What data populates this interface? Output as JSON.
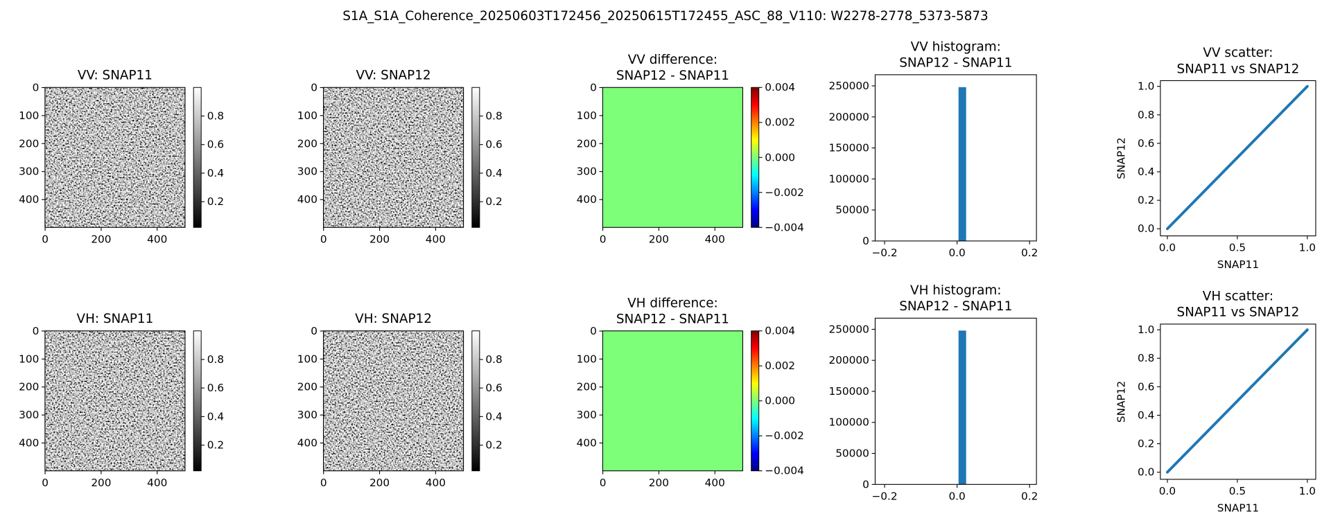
{
  "title": "S1A_S1A_Coherence_20250603T172456_20250615T172455_ASC_88_V110: W2278-2778_5373-5873",
  "chart_data": [
    {
      "type": "image",
      "title": "VV: SNAP11",
      "colormap": "gray",
      "xlim": [
        -0.5,
        499.5
      ],
      "ylim": [
        499.5,
        -0.5
      ],
      "xticks": [
        0,
        200,
        400
      ],
      "yticks": [
        0,
        100,
        200,
        300,
        400
      ],
      "clim": [
        0.02,
        1.0
      ],
      "cticks": [
        0.2,
        0.4,
        0.6,
        0.8
      ]
    },
    {
      "type": "image",
      "title": "VV: SNAP12",
      "colormap": "gray",
      "xlim": [
        -0.5,
        499.5
      ],
      "ylim": [
        499.5,
        -0.5
      ],
      "xticks": [
        0,
        200,
        400
      ],
      "yticks": [
        0,
        100,
        200,
        300,
        400
      ],
      "clim": [
        0.02,
        1.0
      ],
      "cticks": [
        0.2,
        0.4,
        0.6,
        0.8
      ]
    },
    {
      "type": "image",
      "title": "VV difference:\nSNAP12 - SNAP11",
      "colormap": "jet",
      "xlim": [
        -0.5,
        499.5
      ],
      "ylim": [
        499.5,
        -0.5
      ],
      "xticks": [
        0,
        200,
        400
      ],
      "yticks": [
        0,
        100,
        200,
        300,
        400
      ],
      "clim": [
        -0.004,
        0.004
      ],
      "cticks": [
        {
          "value": -0.004,
          "label": "−0.004"
        },
        {
          "value": -0.002,
          "label": "−0.002"
        },
        {
          "value": 0,
          "label": "0.000"
        },
        0.002,
        0.004
      ]
    },
    {
      "type": "histogram",
      "title": "VV histogram:\nSNAP12 - SNAP11",
      "bins": [
        0.004,
        0.025
      ],
      "counts": [
        248000
      ],
      "color": "#1f77b4",
      "xlim": [
        -0.226,
        0.219
      ],
      "ylim": [
        0,
        268000
      ],
      "xticks": [
        {
          "value": -0.2,
          "label": "−0.2"
        },
        {
          "value": 0,
          "label": "0.0"
        },
        0.2
      ],
      "yticks": [
        0,
        50000,
        100000,
        150000,
        200000,
        250000
      ]
    },
    {
      "type": "scatter",
      "title": "VV scatter:\nSNAP11 vs SNAP12",
      "x": [
        0,
        0.5,
        1
      ],
      "y": [
        0,
        0.5,
        1
      ],
      "color": "#1f77b4",
      "xlabel": "SNAP11",
      "ylabel": "SNAP12",
      "xlim": [
        -0.05,
        1.06
      ],
      "ylim": [
        -0.05,
        1.04
      ],
      "xticks": [
        {
          "value": 0,
          "label": "0.0"
        },
        0.5,
        {
          "value": 1,
          "label": "1.0"
        }
      ],
      "yticks": [
        {
          "value": 0,
          "label": "0.0"
        },
        0.2,
        0.4,
        0.6,
        0.8,
        {
          "value": 1,
          "label": "1.0"
        }
      ]
    },
    {
      "type": "image",
      "title": "VH: SNAP11",
      "colormap": "gray",
      "xlim": [
        -0.5,
        499.5
      ],
      "ylim": [
        499.5,
        -0.5
      ],
      "xticks": [
        0,
        200,
        400
      ],
      "yticks": [
        0,
        100,
        200,
        300,
        400
      ],
      "clim": [
        0.02,
        1.0
      ],
      "cticks": [
        0.2,
        0.4,
        0.6,
        0.8
      ]
    },
    {
      "type": "image",
      "title": "VH: SNAP12",
      "colormap": "gray",
      "xlim": [
        -0.5,
        499.5
      ],
      "ylim": [
        499.5,
        -0.5
      ],
      "xticks": [
        0,
        200,
        400
      ],
      "yticks": [
        0,
        100,
        200,
        300,
        400
      ],
      "clim": [
        0.02,
        1.0
      ],
      "cticks": [
        0.2,
        0.4,
        0.6,
        0.8
      ]
    },
    {
      "type": "image",
      "title": "VH difference:\nSNAP12 - SNAP11",
      "colormap": "jet",
      "xlim": [
        -0.5,
        499.5
      ],
      "ylim": [
        499.5,
        -0.5
      ],
      "xticks": [
        0,
        200,
        400
      ],
      "yticks": [
        0,
        100,
        200,
        300,
        400
      ],
      "clim": [
        -0.004,
        0.004
      ],
      "cticks": [
        {
          "value": -0.004,
          "label": "−0.004"
        },
        {
          "value": -0.002,
          "label": "−0.002"
        },
        {
          "value": 0,
          "label": "0.000"
        },
        0.002,
        0.004
      ]
    },
    {
      "type": "histogram",
      "title": "VH histogram:\nSNAP12 - SNAP11",
      "bins": [
        0.004,
        0.025
      ],
      "counts": [
        248000
      ],
      "color": "#1f77b4",
      "xlim": [
        -0.226,
        0.219
      ],
      "ylim": [
        0,
        268000
      ],
      "xticks": [
        {
          "value": -0.2,
          "label": "−0.2"
        },
        {
          "value": 0,
          "label": "0.0"
        },
        0.2
      ],
      "yticks": [
        0,
        50000,
        100000,
        150000,
        200000,
        250000
      ]
    },
    {
      "type": "scatter",
      "title": "VH scatter:\nSNAP11 vs SNAP12",
      "x": [
        0,
        0.5,
        1
      ],
      "y": [
        0,
        0.5,
        1
      ],
      "color": "#1f77b4",
      "xlabel": "SNAP11",
      "ylabel": "SNAP12",
      "xlim": [
        -0.05,
        1.06
      ],
      "ylim": [
        -0.05,
        1.04
      ],
      "xticks": [
        {
          "value": 0,
          "label": "0.0"
        },
        0.5,
        {
          "value": 1,
          "label": "1.0"
        }
      ],
      "yticks": [
        {
          "value": 0,
          "label": "0.0"
        },
        0.2,
        0.4,
        0.6,
        0.8,
        {
          "value": 1,
          "label": "1.0"
        }
      ]
    }
  ]
}
